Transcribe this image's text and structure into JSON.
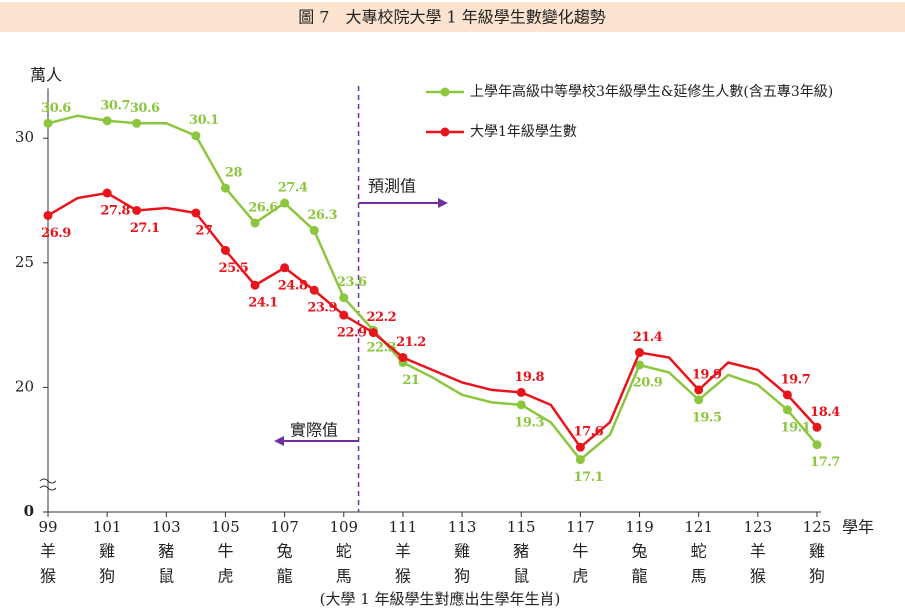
{
  "chart_data": {
    "type": "line",
    "title": "圖 7　大專校院大學 1 年級學生數變化趨勢",
    "y_unit": "萬人",
    "x_label": "學年",
    "note": "(大學 1 年級學生對應出生學年生肖)",
    "x": [
      99,
      100,
      101,
      102,
      103,
      104,
      105,
      106,
      107,
      108,
      109,
      110,
      111,
      112,
      113,
      114,
      115,
      116,
      117,
      118,
      119,
      120,
      121,
      122,
      123,
      124,
      125
    ],
    "xlim": [
      99,
      125
    ],
    "xticks": [
      99,
      101,
      103,
      105,
      107,
      109,
      111,
      113,
      115,
      117,
      119,
      121,
      123,
      125
    ],
    "xtick_zodiac": [
      [
        "羊",
        "猴"
      ],
      [
        "雞",
        "狗"
      ],
      [
        "豬",
        "鼠"
      ],
      [
        "牛",
        "虎"
      ],
      [
        "兔",
        "龍"
      ],
      [
        "蛇",
        "馬"
      ],
      [
        "羊",
        "猴"
      ],
      [
        "雞",
        "狗"
      ],
      [
        "豬",
        "鼠"
      ],
      [
        "牛",
        "虎"
      ],
      [
        "兔",
        "龍"
      ],
      [
        "蛇",
        "馬"
      ],
      [
        "羊",
        "猴"
      ],
      [
        "雞",
        "狗"
      ]
    ],
    "ylim": [
      15,
      32
    ],
    "yticks": [
      0,
      20,
      25,
      30
    ],
    "axis_break": true,
    "divider_x": 109.5,
    "annotations": {
      "forecast": "預測值",
      "actual": "實際值"
    },
    "series": [
      {
        "name": "上學年高級中等學校3年級學生&延修生人數(含五專3年級)",
        "color": "#8cc63f",
        "values": [
          30.6,
          30.9,
          30.7,
          30.6,
          30.6,
          30.1,
          28.0,
          26.6,
          27.4,
          26.3,
          23.6,
          22.3,
          21.0,
          20.4,
          19.7,
          19.4,
          19.3,
          18.6,
          17.1,
          18.1,
          20.9,
          20.6,
          19.5,
          20.5,
          20.1,
          19.1,
          17.7
        ],
        "labels_at": [
          99,
          101,
          102,
          104,
          105,
          106,
          107,
          108,
          109,
          110,
          111,
          115,
          117,
          119,
          121,
          124,
          125
        ]
      },
      {
        "name": "大學1年級學生數",
        "color": "#e8141c",
        "values": [
          26.9,
          27.6,
          27.8,
          27.1,
          27.2,
          27.0,
          25.5,
          24.1,
          24.8,
          23.9,
          22.9,
          22.2,
          21.2,
          20.7,
          20.2,
          19.9,
          19.8,
          19.3,
          17.6,
          18.6,
          21.4,
          21.2,
          19.9,
          21.0,
          20.7,
          19.7,
          18.4
        ],
        "labels_at": [
          99,
          101,
          102,
          104,
          105,
          106,
          107,
          108,
          109,
          110,
          111,
          115,
          117,
          119,
          121,
          124,
          125
        ]
      }
    ]
  }
}
